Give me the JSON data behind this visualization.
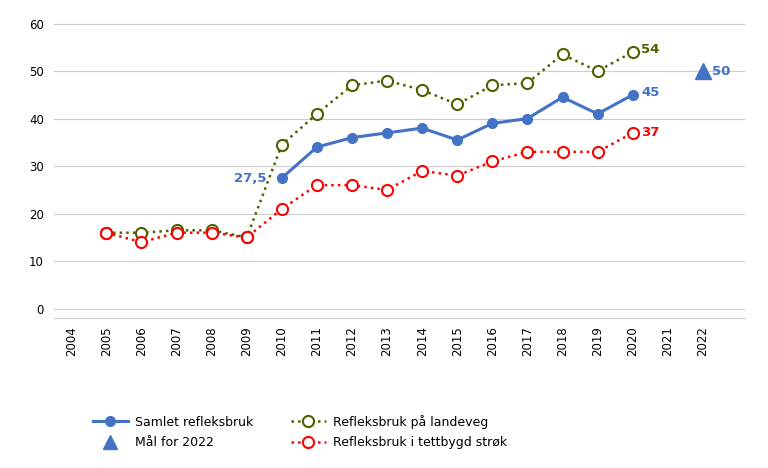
{
  "samlet_years": [
    2010,
    2011,
    2012,
    2013,
    2014,
    2015,
    2016,
    2017,
    2018,
    2019,
    2020
  ],
  "samlet_values": [
    27.5,
    34,
    36,
    37,
    38,
    35.5,
    39,
    40,
    44.5,
    41,
    45
  ],
  "landeveg_years": [
    2005,
    2006,
    2007,
    2008,
    2009,
    2010,
    2011,
    2012,
    2013,
    2014,
    2015,
    2016,
    2017,
    2018,
    2019,
    2020
  ],
  "landeveg_values": [
    16,
    16,
    16.5,
    16.5,
    15,
    34.5,
    41,
    47,
    48,
    46,
    43,
    47,
    47.5,
    53.5,
    50,
    54
  ],
  "tettbygd_years": [
    2005,
    2006,
    2007,
    2008,
    2009,
    2010,
    2011,
    2012,
    2013,
    2014,
    2015,
    2016,
    2017,
    2018,
    2019,
    2020
  ],
  "tettbygd_values": [
    16,
    14,
    16,
    16,
    15,
    21,
    26,
    26,
    25,
    29,
    28,
    31,
    33,
    33,
    33,
    37
  ],
  "mal_year": 2022,
  "mal_value": 50,
  "xlim_min": 2003.5,
  "xlim_max": 2023.2,
  "ylim_min": -2,
  "ylim_max": 62,
  "yticks": [
    0,
    10,
    20,
    30,
    40,
    50,
    60
  ],
  "xticks": [
    2004,
    2005,
    2006,
    2007,
    2008,
    2009,
    2010,
    2011,
    2012,
    2013,
    2014,
    2015,
    2016,
    2017,
    2018,
    2019,
    2020,
    2021,
    2022
  ],
  "color_samlet": "#4472C4",
  "color_landeveg": "#4E6000",
  "color_tettbygd": "#FF0000",
  "color_mal": "#4472C4",
  "bg_color": "#FFFFFF",
  "grid_color": "#CCCCCC",
  "legend_samlet": "Samlet refleksbruk",
  "legend_landeveg": "Refleksbruk på landeveg",
  "legend_tettbygd": "Refleksbruk i tettbygd strøk",
  "legend_mal": "Mål for 2022"
}
